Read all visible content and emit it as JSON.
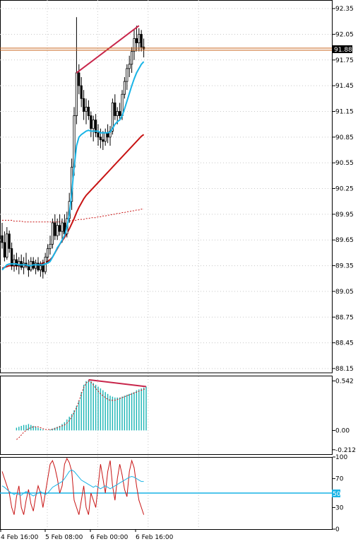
{
  "colors": {
    "background": "#ffffff",
    "grid": "#c8c8c8",
    "axis": "#000000",
    "candle": "#000000",
    "fast_ma": "#19b4e6",
    "slow_ma": "#c81414",
    "long_ma": "#c81414",
    "divergence": "#c8264b",
    "current_price_line": "#c8641e",
    "current_price_tag_bg": "#000000",
    "histogram": "#19b4b4",
    "signal": "#c81414",
    "rsi": "#19b4e6",
    "stoch": "#c81414",
    "level_line": "#19b4e6"
  },
  "chart_data": [
    {
      "type": "candlestick",
      "panel": "price",
      "y_ticks": [
        "92.35",
        "92.05",
        "91.75",
        "91.45",
        "91.15",
        "90.85",
        "90.55",
        "90.25",
        "89.95",
        "89.65",
        "89.35",
        "89.05",
        "88.75",
        "88.45",
        "88.15"
      ],
      "ylim": [
        88.1,
        92.45
      ],
      "current_price": 91.88,
      "current_price_label": "91.88",
      "x_tick_labels": [
        "4 Feb 16:00",
        "5 Feb 08:00",
        "6 Feb 00:00",
        "6 Feb 16:00"
      ],
      "x_tick_bar_index": [
        0,
        21,
        42,
        63
      ],
      "bar_count": 72,
      "grid": true,
      "candles": [
        [
          89.7,
          89.85,
          89.55,
          89.62
        ],
        [
          89.62,
          89.75,
          89.4,
          89.45
        ],
        [
          89.45,
          89.8,
          89.42,
          89.72
        ],
        [
          89.72,
          89.76,
          89.5,
          89.55
        ],
        [
          89.55,
          89.62,
          89.3,
          89.35
        ],
        [
          89.35,
          89.48,
          89.28,
          89.42
        ],
        [
          89.42,
          89.5,
          89.3,
          89.35
        ],
        [
          89.35,
          89.45,
          89.25,
          89.4
        ],
        [
          89.4,
          89.48,
          89.3,
          89.33
        ],
        [
          89.33,
          89.45,
          89.25,
          89.38
        ],
        [
          89.38,
          89.5,
          89.32,
          89.35
        ],
        [
          89.35,
          89.42,
          89.22,
          89.3
        ],
        [
          89.3,
          89.45,
          89.28,
          89.4
        ],
        [
          89.4,
          89.45,
          89.3,
          89.32
        ],
        [
          89.32,
          89.42,
          89.25,
          89.38
        ],
        [
          89.38,
          89.45,
          89.28,
          89.3
        ],
        [
          89.3,
          89.4,
          89.22,
          89.35
        ],
        [
          89.35,
          89.42,
          89.2,
          89.28
        ],
        [
          89.28,
          89.5,
          89.25,
          89.45
        ],
        [
          89.45,
          89.6,
          89.38,
          89.55
        ],
        [
          89.55,
          89.7,
          89.48,
          89.6
        ],
        [
          89.6,
          89.9,
          89.55,
          89.85
        ],
        [
          89.85,
          89.95,
          89.65,
          89.7
        ],
        [
          89.7,
          89.9,
          89.65,
          89.82
        ],
        [
          89.82,
          89.95,
          89.7,
          89.75
        ],
        [
          89.75,
          89.9,
          89.62,
          89.85
        ],
        [
          89.85,
          89.95,
          89.7,
          89.72
        ],
        [
          89.72,
          89.98,
          89.68,
          89.9
        ],
        [
          89.9,
          90.2,
          89.85,
          90.1
        ],
        [
          90.1,
          90.6,
          90.0,
          90.5
        ],
        [
          90.5,
          91.2,
          90.4,
          91.1
        ],
        [
          91.1,
          92.25,
          91.0,
          91.6
        ],
        [
          91.6,
          91.7,
          91.35,
          91.45
        ],
        [
          91.45,
          91.55,
          91.2,
          91.3
        ],
        [
          91.3,
          91.4,
          91.05,
          91.15
        ],
        [
          91.15,
          91.3,
          91.0,
          91.2
        ],
        [
          91.2,
          91.28,
          91.05,
          91.1
        ],
        [
          91.1,
          91.15,
          90.85,
          90.95
        ],
        [
          90.95,
          91.1,
          90.8,
          91.05
        ],
        [
          91.05,
          91.12,
          90.85,
          90.9
        ],
        [
          90.9,
          91.0,
          90.75,
          90.85
        ],
        [
          90.85,
          90.95,
          90.72,
          90.82
        ],
        [
          90.82,
          90.92,
          90.7,
          90.8
        ],
        [
          90.8,
          90.95,
          90.75,
          90.9
        ],
        [
          90.9,
          91.0,
          90.78,
          90.85
        ],
        [
          90.85,
          90.98,
          90.75,
          90.92
        ],
        [
          90.92,
          91.3,
          90.88,
          91.25
        ],
        [
          91.25,
          91.35,
          91.05,
          91.1
        ],
        [
          91.1,
          91.2,
          91.0,
          91.15
        ],
        [
          91.15,
          91.25,
          91.05,
          91.1
        ],
        [
          91.1,
          91.4,
          91.05,
          91.35
        ],
        [
          91.35,
          91.55,
          91.3,
          91.5
        ],
        [
          91.5,
          91.7,
          91.4,
          91.65
        ],
        [
          91.65,
          91.8,
          91.55,
          91.7
        ],
        [
          91.7,
          91.9,
          91.6,
          91.85
        ],
        [
          91.85,
          92.1,
          91.75,
          92.0
        ],
        [
          92.0,
          92.15,
          91.85,
          91.95
        ],
        [
          91.95,
          92.12,
          91.85,
          92.05
        ],
        [
          92.05,
          92.1,
          91.85,
          91.9
        ],
        [
          91.9,
          92.0,
          91.78,
          91.88
        ]
      ],
      "series": [
        {
          "kind": "fast_ma",
          "values": [
            89.3,
            89.33,
            89.36,
            89.37,
            89.37,
            89.37,
            89.37,
            89.36,
            89.36,
            89.36,
            89.36,
            89.35,
            89.35,
            89.36,
            89.36,
            89.36,
            89.36,
            89.36,
            89.37,
            89.38,
            89.4,
            89.45,
            89.5,
            89.56,
            89.6,
            89.65,
            89.7,
            89.8,
            89.95,
            90.2,
            90.5,
            90.75,
            90.85,
            90.88,
            90.9,
            90.92,
            90.93,
            90.92,
            90.92,
            90.92,
            90.92,
            90.9,
            90.9,
            90.9,
            90.9,
            90.91,
            90.95,
            91.0,
            91.03,
            91.05,
            91.1,
            91.18,
            91.27,
            91.36,
            91.45,
            91.53,
            91.6,
            91.65,
            91.7,
            91.73
          ]
        },
        {
          "kind": "slow_ma",
          "values": [
            89.32,
            89.33,
            89.34,
            89.35,
            89.35,
            89.35,
            89.35,
            89.35,
            89.35,
            89.35,
            89.35,
            89.35,
            89.35,
            89.35,
            89.35,
            89.36,
            89.37,
            89.38,
            89.39,
            89.4,
            89.42,
            89.45,
            89.5,
            89.55,
            89.6,
            89.64,
            89.68,
            89.73,
            89.78,
            89.84,
            89.9,
            89.97,
            90.03,
            90.08,
            90.13,
            90.17,
            90.2,
            90.23,
            90.26,
            90.29,
            90.32,
            90.35,
            90.38,
            90.41,
            90.44,
            90.47,
            90.5,
            90.53,
            90.56,
            90.59,
            90.62,
            90.65,
            90.68,
            90.71,
            90.74,
            90.77,
            90.8,
            90.83,
            90.86,
            90.88
          ]
        },
        {
          "kind": "long_ma",
          "values": [
            89.88,
            89.88,
            89.88,
            89.88,
            89.88,
            89.87,
            89.87,
            89.87,
            89.87,
            89.86,
            89.86,
            89.86,
            89.86,
            89.86,
            89.86,
            89.86,
            89.86,
            89.86,
            89.86,
            89.86,
            89.86,
            89.86,
            89.86,
            89.86,
            89.86,
            89.87,
            89.87,
            89.87,
            89.87,
            89.88,
            89.88,
            89.88,
            89.89,
            89.89,
            89.89,
            89.9,
            89.9,
            89.91,
            89.91,
            89.91,
            89.92,
            89.92,
            89.93,
            89.93,
            89.94,
            89.94,
            89.95,
            89.95,
            89.96,
            89.96,
            89.97,
            89.97,
            89.98,
            89.98,
            89.99,
            89.99,
            90.0,
            90.0,
            90.01,
            90.01
          ]
        }
      ],
      "divergence_line": {
        "from": [
          31,
          91.6
        ],
        "to": [
          57,
          92.15
        ]
      }
    },
    {
      "type": "histogram",
      "panel": "oscillator",
      "y_ticks": [
        "0.542",
        "0.00",
        "-0.212"
      ],
      "ylim": [
        -0.26,
        0.6
      ],
      "values": [
        0.03,
        0.04,
        0.05,
        0.06,
        0.06,
        0.07,
        0.06,
        0.05,
        0.04,
        0.03,
        0.02,
        0.01,
        0.0,
        0.0,
        0.01,
        0.02,
        0.03,
        0.04,
        0.05,
        0.07,
        0.09,
        0.12,
        0.15,
        0.18,
        0.22,
        0.27,
        0.33,
        0.42,
        0.5,
        0.54,
        0.55,
        0.54,
        0.52,
        0.5,
        0.48,
        0.46,
        0.44,
        0.42,
        0.4,
        0.38,
        0.37,
        0.36,
        0.36,
        0.36,
        0.37,
        0.38,
        0.39,
        0.4,
        0.41,
        0.42,
        0.44,
        0.45,
        0.46,
        0.47,
        0.48
      ],
      "signal_values": [
        -0.1,
        -0.08,
        -0.05,
        -0.02,
        0.0,
        0.02,
        0.03,
        0.04,
        0.04,
        0.04,
        0.03,
        0.02,
        0.01,
        0.01,
        0.01,
        0.01,
        0.02,
        0.03,
        0.04,
        0.05,
        0.06,
        0.08,
        0.11,
        0.15,
        0.2,
        0.25,
        0.32,
        0.4,
        0.47,
        0.52,
        0.54,
        0.53,
        0.5,
        0.46,
        0.43,
        0.4,
        0.38,
        0.36,
        0.34,
        0.33,
        0.33,
        0.33,
        0.34,
        0.35,
        0.36,
        0.37,
        0.38,
        0.39,
        0.4,
        0.41,
        0.42,
        0.43,
        0.44,
        0.45,
        0.46
      ],
      "divergence_line": {
        "from": [
          30,
          0.555
        ],
        "to": [
          54,
          0.48
        ]
      }
    },
    {
      "type": "line",
      "panel": "rsi",
      "y_ticks": [
        "100",
        "70",
        "50",
        "30",
        "0"
      ],
      "ylim": [
        0,
        100
      ],
      "level": 50,
      "level_label": "50",
      "series": [
        {
          "kind": "rsi",
          "values": [
            60,
            58,
            55,
            52,
            50,
            48,
            50,
            48,
            47,
            50,
            52,
            50,
            48,
            46,
            48,
            50,
            52,
            50,
            48,
            50,
            54,
            58,
            60,
            62,
            64,
            66,
            70,
            75,
            80,
            82,
            80,
            76,
            72,
            68,
            66,
            64,
            62,
            60,
            58,
            60,
            58,
            56,
            58,
            60,
            58,
            56,
            58,
            60,
            62,
            64,
            66,
            68,
            70,
            72,
            73,
            72,
            70,
            68,
            66,
            66
          ]
        },
        {
          "kind": "stoch",
          "values": [
            80,
            70,
            60,
            50,
            30,
            20,
            45,
            60,
            30,
            20,
            40,
            55,
            35,
            25,
            45,
            60,
            50,
            30,
            50,
            70,
            90,
            95,
            85,
            70,
            50,
            60,
            90,
            98,
            92,
            80,
            40,
            30,
            20,
            40,
            60,
            30,
            20,
            50,
            40,
            30,
            60,
            90,
            70,
            50,
            80,
            95,
            60,
            40,
            70,
            90,
            75,
            55,
            45,
            80,
            95,
            85,
            60,
            40,
            30,
            20
          ]
        }
      ]
    }
  ]
}
